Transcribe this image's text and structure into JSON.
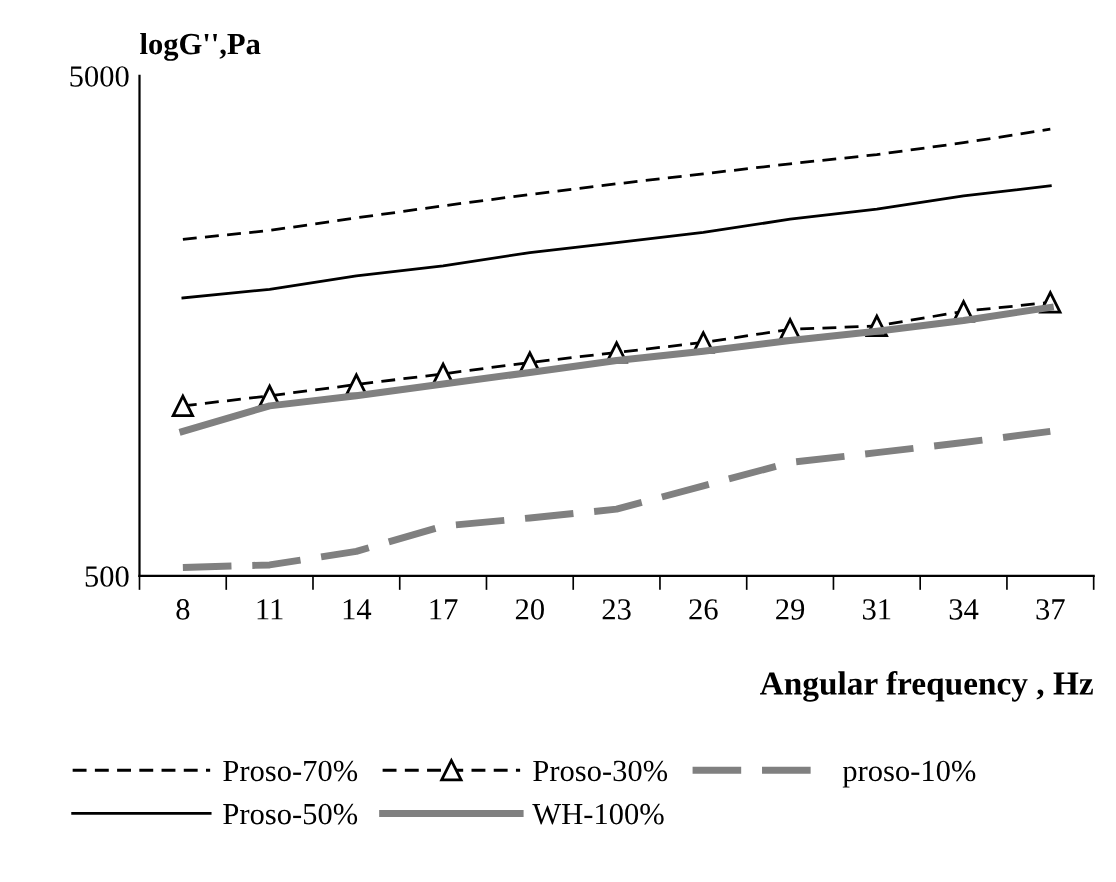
{
  "chart_data": {
    "type": "line",
    "ylabel": "logG'',Pa",
    "xlabel": "Angular frequency , Hz",
    "categories": [
      "8",
      "11",
      "14",
      "17",
      "20",
      "23",
      "26",
      "29",
      "31",
      "34",
      "37"
    ],
    "log": true,
    "ylim": [
      500,
      5000
    ],
    "yticks": [
      500,
      5000
    ],
    "grid": false,
    "legend": "bottom",
    "series": [
      {
        "name": "Proso-70%",
        "color": "#000000",
        "line_style": "dashed",
        "marker": "none",
        "values": [
          2356,
          2454,
          2600,
          2748,
          2896,
          3041,
          3185,
          3335,
          3480,
          3675,
          3911
        ]
      },
      {
        "name": "Proso-50%",
        "color": "#000000",
        "line_style": "solid",
        "marker": "none",
        "values": [
          1798,
          1871,
          1991,
          2084,
          2216,
          2321,
          2431,
          2584,
          2706,
          2877,
          3013
        ]
      },
      {
        "name": "Proso-30%",
        "color": "#000000",
        "line_style": "dashed",
        "marker": "triangle",
        "values": [
          1094,
          1146,
          1207,
          1268,
          1336,
          1399,
          1465,
          1556,
          1581,
          1691,
          1762
        ]
      },
      {
        "name": "WH-100%",
        "color": "#808080",
        "line_style": "solid",
        "marker": "none",
        "values": [
          973,
          1094,
          1146,
          1210,
          1276,
          1348,
          1407,
          1478,
          1543,
          1621,
          1722
        ]
      },
      {
        "name": "proso-10%",
        "color": "#808080",
        "line_style": "dashed",
        "marker": "none",
        "values": [
          520,
          526,
          560,
          629,
          653,
          680,
          757,
          843,
          882,
          924,
          973
        ]
      }
    ]
  }
}
